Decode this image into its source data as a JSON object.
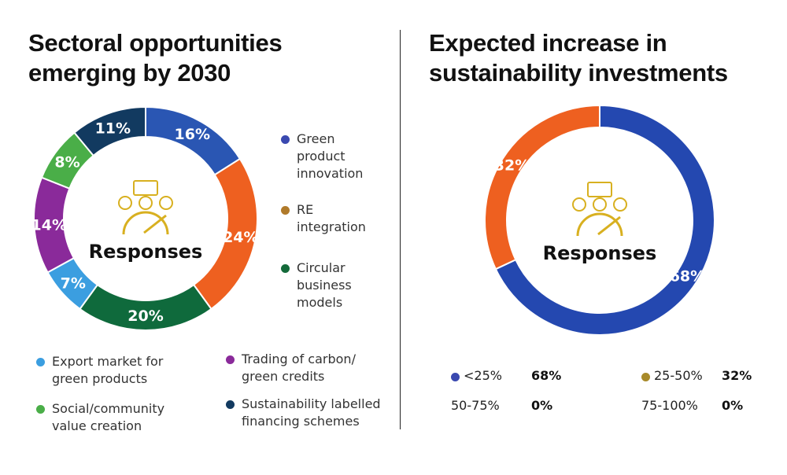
{
  "chart_data": [
    {
      "type": "pie",
      "title": "Sectoral opportunities emerging by 2030",
      "center_label": "Responses",
      "slices": [
        {
          "name": "Green product innovation",
          "value": 16,
          "label": "16%",
          "color": "#2a56b3",
          "dot": "#3a49b0"
        },
        {
          "name": "RE integration",
          "value": 24,
          "label": "24%",
          "color": "#ee6020",
          "dot": "#b07a2a"
        },
        {
          "name": "Circular business models",
          "value": 20,
          "label": "20%",
          "color": "#0f6a3c",
          "dot": "#146a3a"
        },
        {
          "name": "Export market for green products",
          "value": 7,
          "label": "7%",
          "color": "#3b9ee0",
          "dot": "#3b9ee0"
        },
        {
          "name": "Trading of carbon/ green credits",
          "value": 14,
          "label": "14%",
          "color": "#8a2a9a",
          "dot": "#8a2a9a"
        },
        {
          "name": "Social/community value creation",
          "value": 8,
          "label": "8%",
          "color": "#4aae48",
          "dot": "#4aae48"
        },
        {
          "name": "Sustainability labelled financing schemes",
          "value": 11,
          "label": "11%",
          "color": "#123a60",
          "dot": "#123a60"
        }
      ],
      "legend": "right and bottom"
    },
    {
      "type": "pie",
      "title": "Expected increase in sustainability investments",
      "center_label": "Responses",
      "slices": [
        {
          "name": "<25%",
          "value": 68,
          "label": "68%",
          "color": "#2448b0"
        },
        {
          "name": "25-50%",
          "value": 32,
          "label": "32%",
          "color": "#ee6020"
        }
      ],
      "table": [
        {
          "name": "<25%",
          "value": "68%",
          "dot": "#3a49b0"
        },
        {
          "name": "25-50%",
          "value": "32%",
          "dot": "#a88a2a"
        },
        {
          "name": "50-75%",
          "value": "0%"
        },
        {
          "name": "75-100%",
          "value": "0%"
        }
      ],
      "legend": "bottom"
    }
  ]
}
